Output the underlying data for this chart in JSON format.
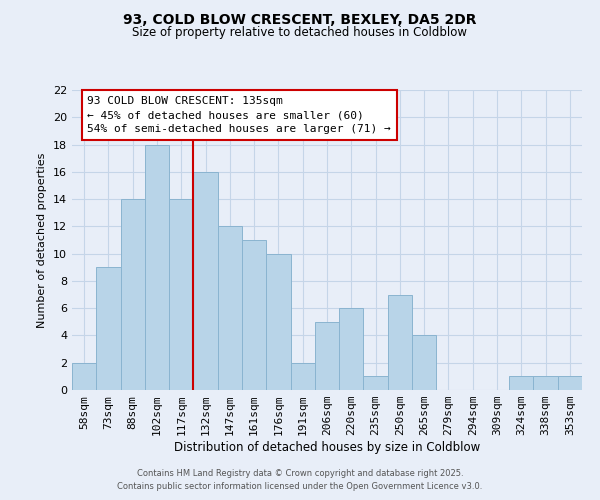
{
  "title1": "93, COLD BLOW CRESCENT, BEXLEY, DA5 2DR",
  "title2": "Size of property relative to detached houses in Coldblow",
  "xlabel": "Distribution of detached houses by size in Coldblow",
  "ylabel": "Number of detached properties",
  "bin_labels": [
    "58sqm",
    "73sqm",
    "88sqm",
    "102sqm",
    "117sqm",
    "132sqm",
    "147sqm",
    "161sqm",
    "176sqm",
    "191sqm",
    "206sqm",
    "220sqm",
    "235sqm",
    "250sqm",
    "265sqm",
    "279sqm",
    "294sqm",
    "309sqm",
    "324sqm",
    "338sqm",
    "353sqm"
  ],
  "bar_heights": [
    2,
    9,
    14,
    18,
    14,
    16,
    12,
    11,
    10,
    2,
    5,
    6,
    1,
    7,
    4,
    0,
    0,
    0,
    1,
    1,
    1
  ],
  "bar_color": "#b8d4e8",
  "bar_edge_color": "#8ab4d0",
  "vline_color": "#cc0000",
  "annotation_title": "93 COLD BLOW CRESCENT: 135sqm",
  "annotation_line1": "← 45% of detached houses are smaller (60)",
  "annotation_line2": "54% of semi-detached houses are larger (71) →",
  "ylim": [
    0,
    22
  ],
  "yticks": [
    0,
    2,
    4,
    6,
    8,
    10,
    12,
    14,
    16,
    18,
    20,
    22
  ],
  "footer1": "Contains HM Land Registry data © Crown copyright and database right 2025.",
  "footer2": "Contains public sector information licensed under the Open Government Licence v3.0.",
  "bg_color": "#e8eef8",
  "grid_color": "#c5d5e8"
}
